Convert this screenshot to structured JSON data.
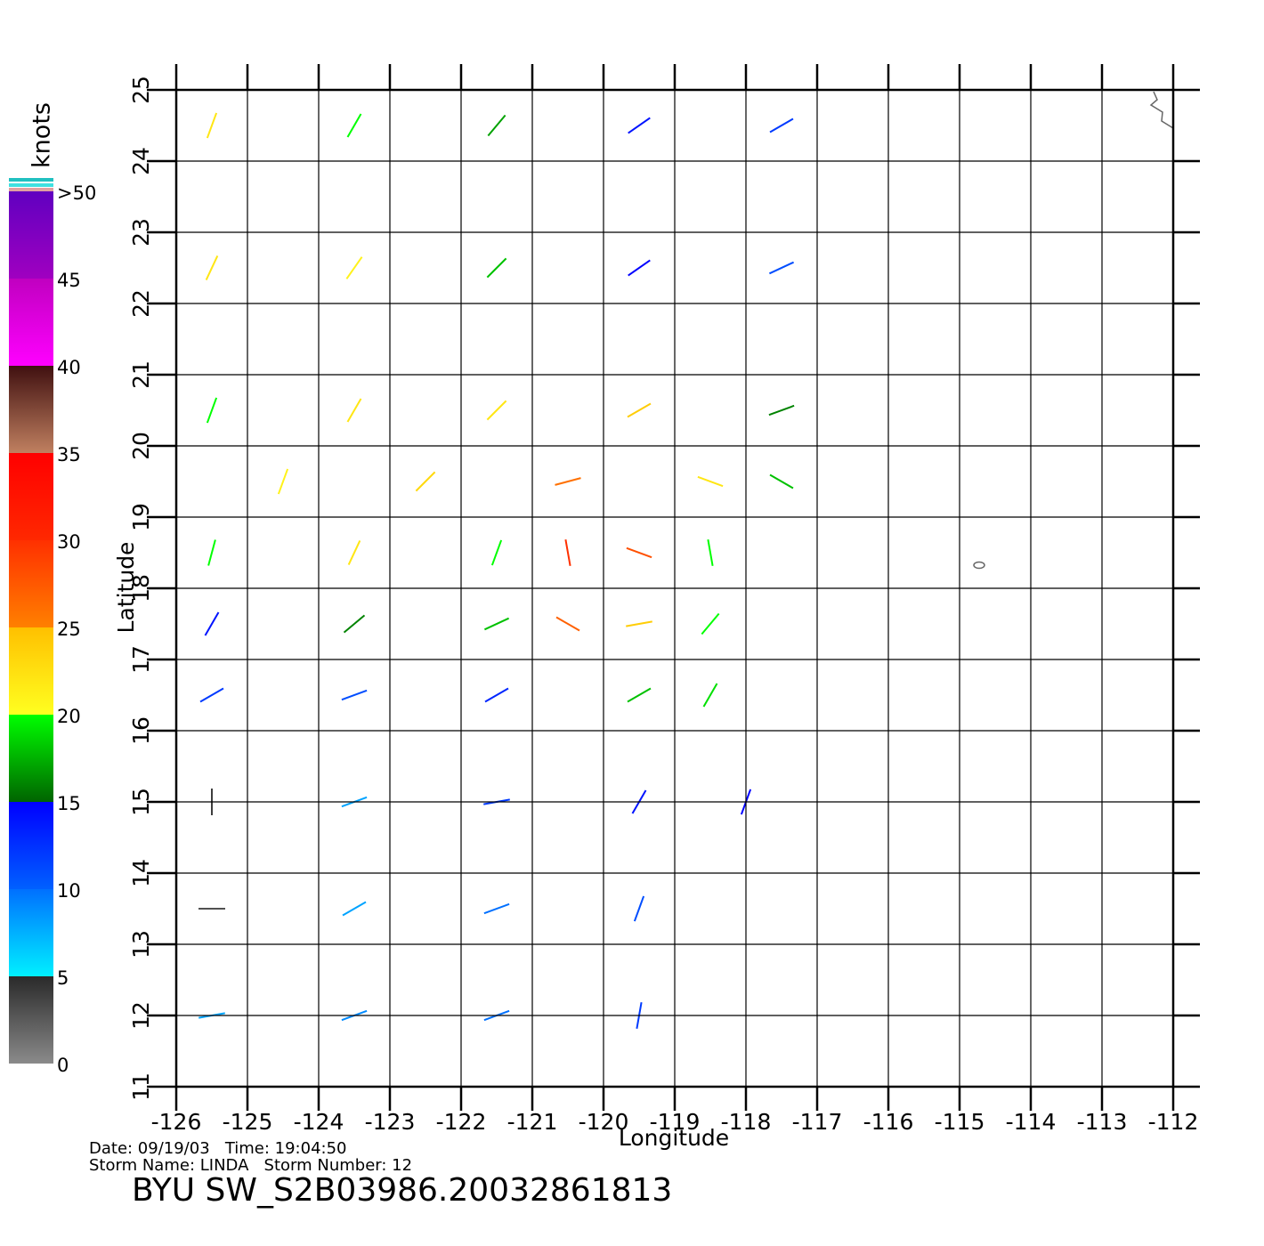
{
  "chart_data": {
    "type": "wind_vector",
    "title": "BYU SW_S2B03986.20032861813",
    "footer": [
      "Date: 09/19/03   Time: 19:04:50",
      "Storm Name: LINDA   Storm Number: 12"
    ],
    "x_label": "Longitude",
    "y_label": "Latitude",
    "xlim": [
      -126,
      -112
    ],
    "ylim": [
      11,
      25
    ],
    "xticks": [
      -126,
      -125,
      -124,
      -123,
      -122,
      -121,
      -120,
      -119,
      -118,
      -117,
      -116,
      -115,
      -114,
      -113,
      -112
    ],
    "yticks": [
      11,
      12,
      13,
      14,
      15,
      16,
      17,
      18,
      19,
      20,
      21,
      22,
      23,
      24,
      25
    ],
    "grid": true,
    "colorbar": {
      "label": "knots",
      "lim": [
        0,
        50
      ],
      "ticks": [
        0,
        5,
        10,
        15,
        20,
        25,
        30,
        35,
        40,
        45,
        {
          "value": 50,
          "label": ">50"
        }
      ],
      "segments": [
        [
          "#8a8a8a",
          "#2a2a2a"
        ],
        [
          "#00f0ff",
          "#0070ff"
        ],
        [
          "#0060ff",
          "#0000ff"
        ],
        [
          "#006400",
          "#00ff00"
        ],
        [
          "#ffff20",
          "#ffc000"
        ],
        [
          "#ff8000",
          "#ff3000"
        ],
        [
          "#ff2800",
          "#ff0000"
        ],
        [
          "#c08060",
          "#401010"
        ],
        [
          "#ff00ff",
          "#c000c0"
        ],
        [
          "#a000c0",
          "#6000c0"
        ]
      ]
    },
    "wind": {
      "lon": [
        -125.5,
        -123.5,
        -121.5,
        -119.5,
        -117.5,
        -125.5,
        -123.5,
        -121.5,
        -119.5,
        -117.5,
        -125.5,
        -123.5,
        -121.5,
        -119.5,
        -117.5,
        -124.5,
        -122.5,
        -120.5,
        -118.5,
        -117.5,
        -125.5,
        -123.5,
        -121.5,
        -120.5,
        -119.5,
        -118.5,
        -125.5,
        -123.5,
        -121.5,
        -120.5,
        -119.5,
        -118.5,
        -125.5,
        -123.5,
        -121.5,
        -119.5,
        -118.5,
        -125.5,
        -123.5,
        -121.5,
        -119.5,
        -118,
        -125.5,
        -123.5,
        -121.5,
        -119.5,
        -125.5,
        -123.5,
        -121.5,
        -119.5
      ],
      "lat": [
        24.5,
        24.5,
        24.5,
        24.5,
        24.5,
        22.5,
        22.5,
        22.5,
        22.5,
        22.5,
        20.5,
        20.5,
        20.5,
        20.5,
        20.5,
        19.5,
        19.5,
        19.5,
        19.5,
        19.5,
        18.5,
        18.5,
        18.5,
        18.5,
        18.5,
        18.5,
        17.5,
        17.5,
        17.5,
        17.5,
        17.5,
        17.5,
        16.5,
        16.5,
        16.5,
        16.5,
        16.5,
        15,
        15,
        15,
        15,
        15,
        13.5,
        13.5,
        13.5,
        13.5,
        12,
        12,
        12,
        12
      ],
      "speed": [
        22,
        20,
        17,
        14,
        12,
        22,
        21,
        18,
        15,
        11,
        20,
        22,
        22,
        24,
        16,
        21,
        23,
        26,
        22,
        18,
        20,
        22,
        20,
        30,
        28,
        20,
        14,
        16,
        18,
        27,
        24,
        20,
        12,
        11,
        13,
        18,
        19,
        4,
        8,
        12,
        14,
        15,
        3,
        8,
        10,
        11,
        8,
        9,
        10,
        12
      ],
      "dir": [
        200,
        210,
        220,
        235,
        240,
        205,
        215,
        225,
        235,
        245,
        200,
        210,
        225,
        240,
        250,
        200,
        225,
        255,
        290,
        300,
        195,
        205,
        200,
        170,
        110,
        350,
        210,
        230,
        245,
        120,
        80,
        40,
        240,
        250,
        240,
        60,
        30,
        180,
        250,
        260,
        30,
        20,
        90,
        240,
        250,
        20,
        260,
        250,
        250,
        10
      ]
    }
  }
}
